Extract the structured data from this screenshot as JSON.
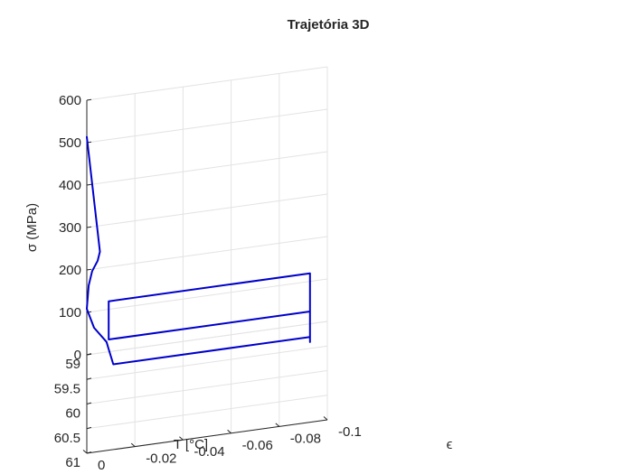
{
  "chart_data": {
    "type": "line",
    "projection": "3d",
    "title": "Trajetória 3D",
    "xlabel": "T [°C]",
    "ylabel": "ϵ",
    "zlabel": "σ (MPa)",
    "xlim": [
      59,
      61
    ],
    "ylim": [
      -0.1,
      0
    ],
    "zlim": [
      0,
      600
    ],
    "xticks": [
      59,
      59.5,
      60,
      60.5,
      61
    ],
    "xtick_labels": [
      "59",
      "59.5",
      "60",
      "60.5",
      "61"
    ],
    "yticks": [
      -0.1,
      -0.08,
      -0.06,
      -0.04,
      -0.02,
      0
    ],
    "ytick_labels": [
      "-0.1",
      "-0.08",
      "-0.06",
      "-0.04",
      "-0.02",
      "0"
    ],
    "zticks": [
      0,
      100,
      200,
      300,
      400,
      500,
      600
    ],
    "ztick_labels": [
      "0",
      "100",
      "200",
      "300",
      "400",
      "500",
      "600"
    ],
    "grid": true,
    "line_color": "#0000cc",
    "series": [
      {
        "points": [
          {
            "T": 59.4,
            "e": 0.0,
            "s": 560
          },
          {
            "T": 59.44,
            "e": -0.00545,
            "s": 290
          },
          {
            "T": 59.49,
            "e": -0.0045,
            "s": 275
          },
          {
            "T": 59.6,
            "e": -0.0022,
            "s": 265
          },
          {
            "T": 59.75,
            "e": -0.0008,
            "s": 250
          },
          {
            "T": 59.92,
            "e": 0.0,
            "s": 215
          },
          {
            "T": 59.98,
            "e": -0.003,
            "s": 175
          },
          {
            "T": 60.0,
            "e": -0.0082,
            "s": 140
          },
          {
            "T": 60.0,
            "e": -0.0091,
            "s": 122
          },
          {
            "T": 60.0,
            "e": -0.011,
            "s": 85
          },
          {
            "T": 60.0,
            "e": -0.0928,
            "s": 85
          },
          {
            "T": 60.0,
            "e": -0.0928,
            "s": 145
          },
          {
            "T": 60.0,
            "e": -0.0091,
            "s": 145
          },
          {
            "T": 60.0,
            "e": -0.0091,
            "s": 235
          },
          {
            "T": 60.0,
            "e": -0.0928,
            "s": 235
          },
          {
            "T": 60.0,
            "e": -0.0928,
            "s": 73
          }
        ]
      }
    ]
  }
}
